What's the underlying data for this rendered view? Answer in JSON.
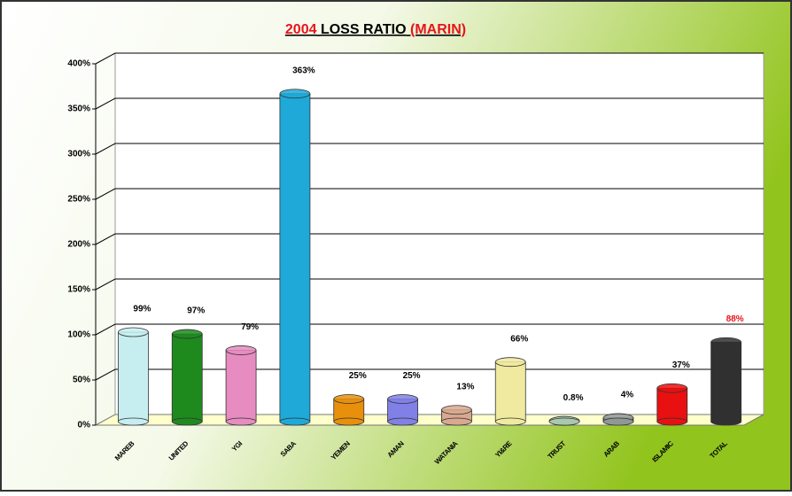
{
  "chart_data": {
    "type": "bar",
    "title": [
      "2004",
      "LOSS RATIO",
      "(MARIN)"
    ],
    "title_colors": [
      "#e8141b",
      "#000000",
      "#e8141b"
    ],
    "categories": [
      "MAREB",
      "UNITED",
      "YGI",
      "SABA",
      "YEMEN",
      "AMAN",
      "WATANIA",
      "YI&RE",
      "TRUST",
      "ARAB",
      "ISLAMIC",
      "TOTAL"
    ],
    "values": [
      99,
      97,
      79,
      363,
      25,
      25,
      13,
      66,
      0.8,
      4,
      37,
      88
    ],
    "value_labels": [
      "99%",
      "97%",
      "79%",
      "363%",
      "25%",
      "25%",
      "13%",
      "66%",
      "0.8%",
      "4%",
      "37%",
      "88%"
    ],
    "value_label_colors": [
      "#000000",
      "#000000",
      "#000000",
      "#000000",
      "#000000",
      "#000000",
      "#000000",
      "#000000",
      "#000000",
      "#000000",
      "#000000",
      "#e8141b"
    ],
    "colors": [
      "#c6eef0",
      "#1e8a1e",
      "#e68cc0",
      "#1ea9d8",
      "#e8900c",
      "#8080e6",
      "#d8a890",
      "#f0eaa0",
      "#a8c8b0",
      "#909898",
      "#e81010",
      "#303030"
    ],
    "ylim": [
      0,
      400
    ],
    "yticks": [
      {
        "value": 0,
        "label": "0%"
      },
      {
        "value": 50,
        "label": "50%"
      },
      {
        "value": 100,
        "label": "100%"
      },
      {
        "value": 150,
        "label": "150%"
      },
      {
        "value": 200,
        "label": "200%"
      },
      {
        "value": 250,
        "label": "250%"
      },
      {
        "value": 300,
        "label": "300%"
      },
      {
        "value": 350,
        "label": "350%"
      },
      {
        "value": 400,
        "label": "400%"
      }
    ],
    "grid": true
  }
}
